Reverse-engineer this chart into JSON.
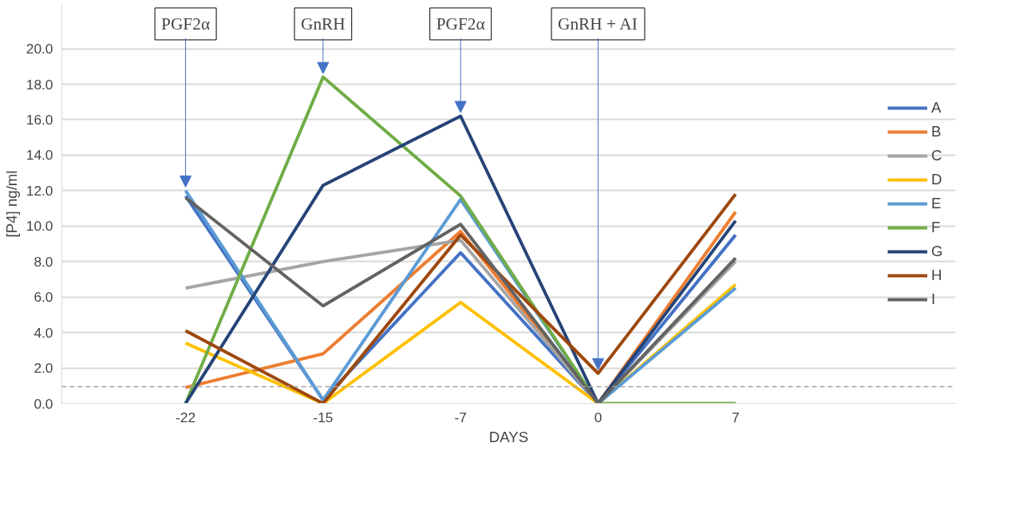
{
  "chart_data": {
    "type": "line",
    "xlabel": "DAYS",
    "ylabel": "[P4] ng/ml",
    "categories": [
      "-22",
      "-15",
      "-7",
      "0",
      "7"
    ],
    "ylim": [
      0,
      22.5
    ],
    "yticks": [
      {
        "value": 0,
        "label": "0.0"
      },
      {
        "value": 2,
        "label": "2.0"
      },
      {
        "value": 4,
        "label": "4.0"
      },
      {
        "value": 6,
        "label": "6.0"
      },
      {
        "value": 8,
        "label": "8.0"
      },
      {
        "value": 10,
        "label": "10.0"
      },
      {
        "value": 12,
        "label": "12.0"
      },
      {
        "value": 14,
        "label": "14.0"
      },
      {
        "value": 16,
        "label": "16.0"
      },
      {
        "value": 18,
        "label": "18.0"
      },
      {
        "value": 20,
        "label": "20.0"
      }
    ],
    "grid": "y",
    "legend": "right",
    "marker": "none",
    "line_style": "solid",
    "series": [
      {
        "name": "A",
        "color": "#4472c4",
        "values": [
          11.7,
          0.2,
          8.5,
          0,
          9.5
        ]
      },
      {
        "name": "B",
        "color": "#ed7d31",
        "values": [
          0.9,
          2.8,
          9.7,
          0,
          10.8
        ]
      },
      {
        "name": "C",
        "color": "#a5a5a5",
        "values": [
          6.5,
          8.0,
          9.2,
          0,
          8.0
        ]
      },
      {
        "name": "D",
        "color": "#ffc000",
        "values": [
          3.4,
          0,
          5.7,
          0,
          6.7
        ]
      },
      {
        "name": "E",
        "color": "#5b9bd5",
        "values": [
          12.0,
          0.2,
          11.5,
          0,
          6.5
        ]
      },
      {
        "name": "F",
        "color": "#70ad47",
        "values": [
          0,
          18.4,
          11.7,
          0,
          0
        ]
      },
      {
        "name": "G",
        "color": "#264478",
        "values": [
          0,
          12.3,
          16.2,
          0,
          10.3
        ]
      },
      {
        "name": "H",
        "color": "#9e480e",
        "values": [
          4.1,
          0,
          9.5,
          1.7,
          11.8
        ]
      },
      {
        "name": "I",
        "color": "#636363",
        "values": [
          11.6,
          5.5,
          10.1,
          0,
          8.2
        ]
      }
    ],
    "ref_lines": [
      {
        "axis": "y",
        "value": 0.95,
        "label": null,
        "color": "#a5a5a5",
        "line_style": "dashed"
      }
    ],
    "annotations": [
      {
        "text": "PGF2α",
        "x": "-22",
        "y": 12.0
      },
      {
        "text": "GnRH",
        "x": "-15",
        "y": 18.4
      },
      {
        "text": "PGF2α",
        "x": "-7",
        "y": 16.2
      },
      {
        "text": "GnRH + AI",
        "x": "0",
        "y": 1.7
      }
    ]
  }
}
